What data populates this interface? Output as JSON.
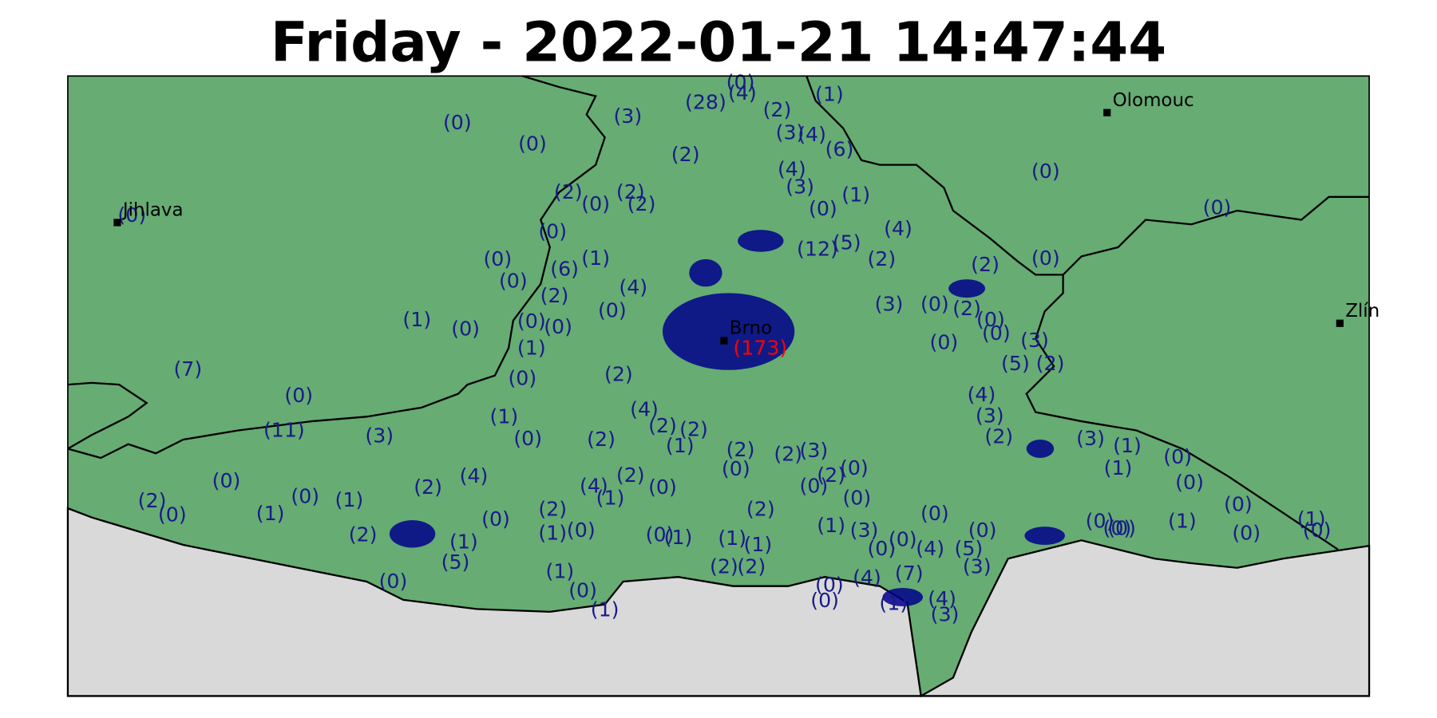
{
  "title": "Friday - 2022-01-21 14:47:44",
  "cities": [
    "Jihlava",
    "Olomouc",
    "Zlín",
    "Brno"
  ],
  "highlight": "(173)",
  "labels": [
    "(0)",
    "(0)",
    "(3)",
    "(28)",
    "(0)",
    "(4)",
    "(1)",
    "(2)",
    "(3)",
    "(4)",
    "(6)",
    "(2)",
    "(4)",
    "(3)",
    "(1)",
    "(0)",
    "(4)",
    "(12)",
    "(5)",
    "(2)",
    "(0)",
    "(0)",
    "(0)",
    "(2)",
    "(3)",
    "(0)",
    "(2)",
    "(0)",
    "(0)",
    "(3)",
    "(5)",
    "(2)",
    "(0)",
    "(4)",
    "(3)",
    "(2)",
    "(3)",
    "(1)",
    "(0)",
    "(1)",
    "(0)",
    "(0)",
    "(0)",
    "(1)",
    "(0)",
    "(1)",
    "(0)",
    "(0)",
    "(0)",
    "(0)",
    "(5)",
    "(0)",
    "(4)",
    "(0)",
    "(3)",
    "(1)",
    "(0)",
    "(0)",
    "(2)",
    "(0)",
    "(3)",
    "(2)",
    "(2)",
    "(1)",
    "(2)",
    "(2)",
    "(1)",
    "(1)",
    "(0)",
    "(0)",
    "(1)",
    "(2)",
    "(1)",
    "(4)",
    "(2)",
    "(0)",
    "(0)",
    "(2)",
    "(1)",
    "(2)",
    "(2)",
    "(4)",
    "(2)",
    "(0)",
    "(1)",
    "(3)",
    "(11)",
    "(0)",
    "(7)",
    "(1)",
    "(0)",
    "(0)",
    "(0)",
    "(2)",
    "(6)",
    "(4)",
    "(0)",
    "(0)",
    "(0)",
    "(1)",
    "(0)",
    "(2)",
    "(0)",
    "(2)",
    "(0)",
    "(1)",
    "(0)",
    "(1)",
    "(2)",
    "(4)",
    "(0)",
    "(1)",
    "(5)",
    "(2)",
    "(0)",
    "(1)",
    "(0)",
    "(1)",
    "(0)",
    "(4)",
    "(7)",
    "(3)",
    "(4)",
    "(0)",
    "(1)",
    "(3)",
    "(0)",
    "(0)",
    "(2)",
    "(2)",
    "(0)",
    "(2)",
    "(0)",
    "(1)"
  ]
}
